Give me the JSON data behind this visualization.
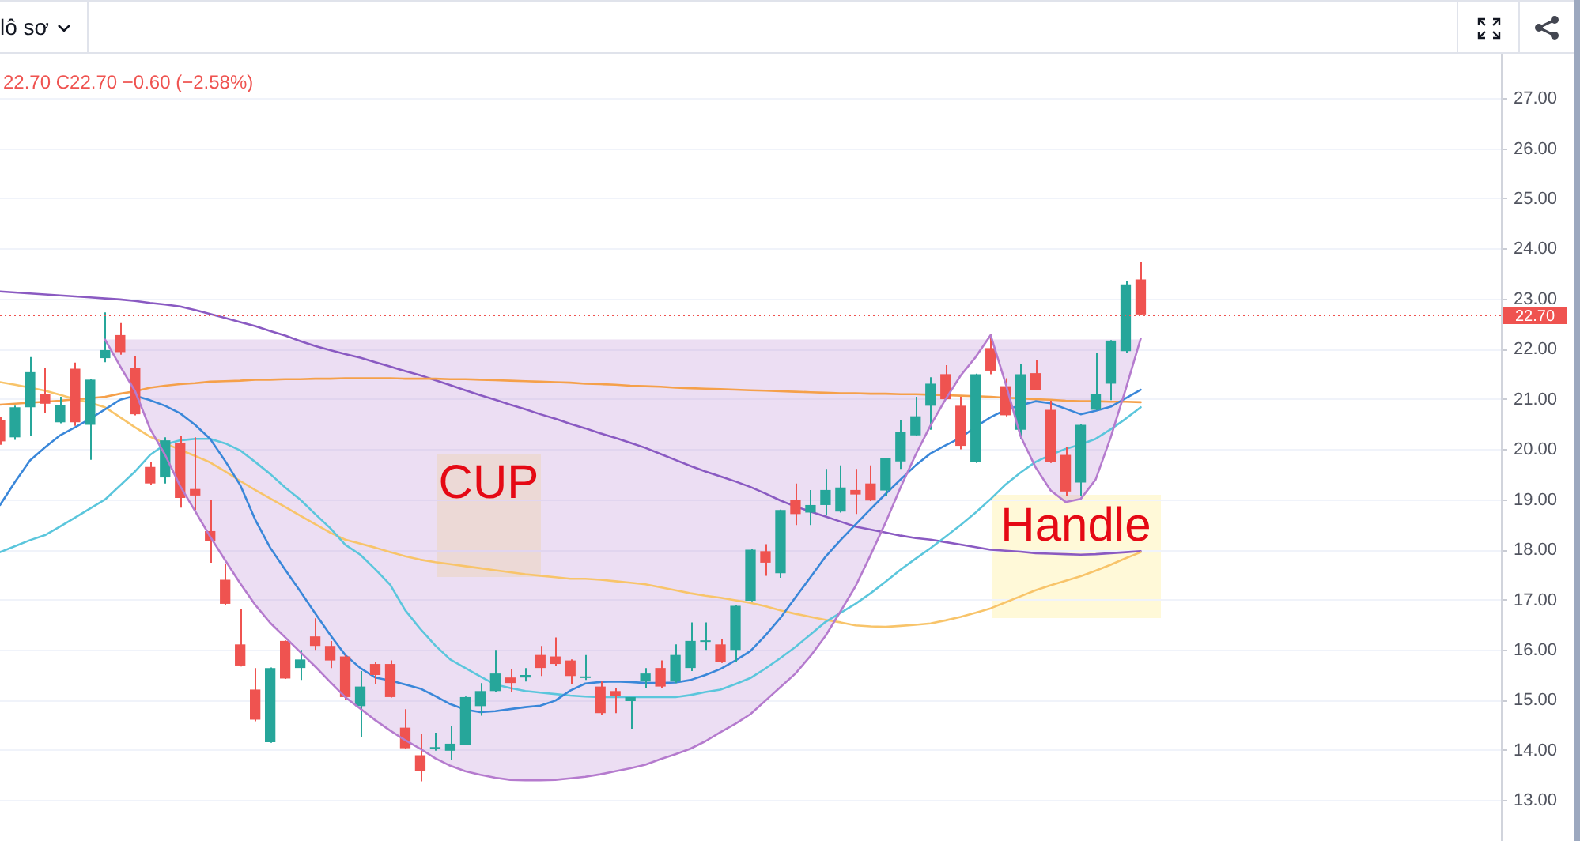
{
  "chart_data": {
    "type": "candlestick",
    "categories": [
      null,
      null,
      null,
      null,
      null,
      null,
      null,
      null,
      null,
      null,
      null,
      null,
      null,
      null,
      null,
      null,
      null,
      null,
      null,
      null,
      null,
      null,
      null,
      null,
      null,
      null,
      null,
      null,
      null,
      null,
      null,
      null,
      null,
      null,
      null,
      null,
      null,
      null,
      null,
      null,
      null,
      null,
      null,
      null,
      null,
      null,
      null,
      null,
      null,
      null,
      null,
      null,
      null,
      null,
      null,
      null,
      null,
      null,
      null,
      null,
      null,
      null,
      null,
      null,
      null,
      null,
      null,
      null,
      null,
      null,
      null,
      null,
      null,
      null,
      null,
      null,
      null,
      null,
      null,
      null,
      null,
      null,
      null,
      null,
      null,
      null,
      null,
      null,
      null,
      null,
      null,
      null,
      null,
      null,
      null,
      null,
      null,
      null,
      null,
      null,
      null
    ],
    "ohlc": [
      [
        20.59,
        20.65,
        20.1,
        20.17
      ],
      [
        20.25,
        20.88,
        20.2,
        20.85
      ],
      [
        20.85,
        21.85,
        20.27,
        21.55
      ],
      [
        21.11,
        21.64,
        20.74,
        20.92
      ],
      [
        20.55,
        21.06,
        20.53,
        20.9
      ],
      [
        21.62,
        21.74,
        20.48,
        20.55
      ],
      [
        20.5,
        21.42,
        19.8,
        21.4
      ],
      [
        21.83,
        22.74,
        21.75,
        21.99
      ],
      [
        22.29,
        22.53,
        21.9,
        21.95
      ],
      [
        21.64,
        21.87,
        20.69,
        20.71
      ],
      [
        19.66,
        19.75,
        19.3,
        19.33
      ],
      [
        19.45,
        20.25,
        19.33,
        20.19
      ],
      [
        20.14,
        20.27,
        18.85,
        19.04
      ],
      [
        19.22,
        20.25,
        18.8,
        19.09
      ],
      [
        18.38,
        19.01,
        17.75,
        18.19
      ],
      [
        17.41,
        17.73,
        16.91,
        16.93
      ],
      [
        16.12,
        16.82,
        15.68,
        15.7
      ],
      [
        15.22,
        15.65,
        14.59,
        14.62
      ],
      [
        14.17,
        15.66,
        14.16,
        15.65
      ],
      [
        16.19,
        16.2,
        15.43,
        15.44
      ],
      [
        15.65,
        16.01,
        15.41,
        15.82
      ],
      [
        16.28,
        16.64,
        16.01,
        16.09
      ],
      [
        16.09,
        16.19,
        15.65,
        15.8
      ],
      [
        15.88,
        15.91,
        15.01,
        15.07
      ],
      [
        14.89,
        15.59,
        14.28,
        15.28
      ],
      [
        15.73,
        15.77,
        15.33,
        15.51
      ],
      [
        15.73,
        15.8,
        15.06,
        15.07
      ],
      [
        14.46,
        14.83,
        14.04,
        14.05
      ],
      [
        13.91,
        14.33,
        13.39,
        13.6
      ],
      [
        14.04,
        14.36,
        14.0,
        14.07
      ],
      [
        14.0,
        14.49,
        13.81,
        14.14
      ],
      [
        14.12,
        15.08,
        14.11,
        15.07
      ],
      [
        14.89,
        15.35,
        14.7,
        15.19
      ],
      [
        15.19,
        16.01,
        15.18,
        15.54
      ],
      [
        15.46,
        15.62,
        15.17,
        15.35
      ],
      [
        15.46,
        15.65,
        15.38,
        15.51
      ],
      [
        15.91,
        16.09,
        15.49,
        15.65
      ],
      [
        15.88,
        16.26,
        15.7,
        15.73
      ],
      [
        15.8,
        15.82,
        15.33,
        15.49
      ],
      [
        15.45,
        15.91,
        15.41,
        15.47
      ],
      [
        15.28,
        15.38,
        14.72,
        14.75
      ],
      [
        15.19,
        15.25,
        14.75,
        15.09
      ],
      [
        14.99,
        15.07,
        14.44,
        15.07
      ],
      [
        15.38,
        15.65,
        15.25,
        15.54
      ],
      [
        15.65,
        15.8,
        15.25,
        15.28
      ],
      [
        15.38,
        16.12,
        15.35,
        15.91
      ],
      [
        15.65,
        16.56,
        15.59,
        16.19
      ],
      [
        16.17,
        16.56,
        16.01,
        16.19
      ],
      [
        16.12,
        16.22,
        15.75,
        15.77
      ],
      [
        16.01,
        16.9,
        15.77,
        16.89
      ],
      [
        16.99,
        18.02,
        16.98,
        18.01
      ],
      [
        17.98,
        18.12,
        17.49,
        17.75
      ],
      [
        17.54,
        18.81,
        17.45,
        18.8
      ],
      [
        19.01,
        19.33,
        18.5,
        18.72
      ],
      [
        18.75,
        19.2,
        18.5,
        18.9
      ],
      [
        18.9,
        19.62,
        18.69,
        19.2
      ],
      [
        18.77,
        19.69,
        18.75,
        19.25
      ],
      [
        19.2,
        19.62,
        18.72,
        19.11
      ],
      [
        19.33,
        19.69,
        18.98,
        18.99
      ],
      [
        19.19,
        19.84,
        19.09,
        19.83
      ],
      [
        19.77,
        20.59,
        19.62,
        20.36
      ],
      [
        20.29,
        21.06,
        20.27,
        20.67
      ],
      [
        20.88,
        21.45,
        20.4,
        21.32
      ],
      [
        21.51,
        21.69,
        21.0,
        21.01
      ],
      [
        20.88,
        21.06,
        20.01,
        20.08
      ],
      [
        19.75,
        21.52,
        19.74,
        21.51
      ],
      [
        22.03,
        22.32,
        21.51,
        21.58
      ],
      [
        21.27,
        21.43,
        20.67,
        20.69
      ],
      [
        20.4,
        21.71,
        20.22,
        21.51
      ],
      [
        21.53,
        21.8,
        21.19,
        21.2
      ],
      [
        20.8,
        20.98,
        19.74,
        19.75
      ],
      [
        19.9,
        20.06,
        19.09,
        19.17
      ],
      [
        19.35,
        20.51,
        19.09,
        20.5
      ],
      [
        20.8,
        21.93,
        20.79,
        21.11
      ],
      [
        21.32,
        22.19,
        20.99,
        22.18
      ],
      [
        21.97,
        23.37,
        21.93,
        23.3
      ],
      [
        23.4,
        23.75,
        22.7,
        22.7
      ],
      null,
      null,
      null,
      null,
      null,
      null,
      null,
      null,
      null,
      null,
      null,
      null,
      null,
      null,
      null,
      null,
      null,
      null,
      null,
      null,
      null,
      null,
      null,
      null
    ],
    "colors": [
      "#ef5350",
      "#26a69a",
      "#26a69a",
      "#ef5350",
      "#26a69a",
      "#ef5350",
      "#26a69a",
      "#26a69a",
      "#ef5350",
      "#ef5350",
      "#ef5350",
      "#26a69a",
      "#ef5350",
      "#ef5350",
      "#ef5350",
      "#ef5350",
      "#ef5350",
      "#ef5350",
      "#26a69a",
      "#ef5350",
      "#26a69a",
      "#ef5350",
      "#ef5350",
      "#ef5350",
      "#26a69a",
      "#ef5350",
      "#ef5350",
      "#ef5350",
      "#ef5350",
      "#26a69a",
      "#26a69a",
      "#26a69a",
      "#26a69a",
      "#26a69a",
      "#ef5350",
      "#26a69a",
      "#ef5350",
      "#ef5350",
      "#ef5350",
      "#26a69a",
      "#ef5350",
      "#ef5350",
      "#26a69a",
      "#26a69a",
      "#ef5350",
      "#26a69a",
      "#26a69a",
      "#26a69a",
      "#ef5350",
      "#26a69a",
      "#26a69a",
      "#ef5350",
      "#26a69a",
      "#ef5350",
      "#26a69a",
      "#26a69a",
      "#26a69a",
      "#ef5350",
      "#ef5350",
      "#26a69a",
      "#26a69a",
      "#26a69a",
      "#26a69a",
      "#ef5350",
      "#ef5350",
      "#26a69a",
      "#ef5350",
      "#ef5350",
      "#26a69a",
      "#ef5350",
      "#ef5350",
      "#ef5350",
      "#26a69a",
      "#26a69a",
      "#26a69a",
      "#26a69a",
      "#ef5350",
      null,
      null,
      null,
      null,
      null,
      null,
      null,
      null,
      null,
      null,
      null,
      null,
      null,
      null,
      null,
      null,
      null,
      null,
      null,
      null,
      null,
      null,
      null,
      null
    ],
    "series": [
      {
        "type": "line",
        "color": "#3a87d9",
        "values": [
          18.9,
          19.36,
          19.79,
          20.05,
          20.29,
          20.45,
          20.62,
          20.81,
          21.0,
          21.08,
          20.99,
          20.88,
          20.73,
          20.5,
          20.22,
          19.78,
          19.3,
          18.61,
          18.05,
          17.61,
          17.18,
          16.74,
          16.31,
          15.91,
          15.65,
          15.46,
          15.4,
          15.32,
          15.24,
          15.09,
          14.93,
          14.82,
          14.77,
          14.79,
          14.83,
          14.87,
          14.9,
          15.0,
          15.2,
          15.34,
          15.37,
          15.38,
          15.37,
          15.35,
          15.35,
          15.36,
          15.41,
          15.51,
          15.63,
          15.8,
          15.99,
          16.3,
          16.65,
          17.06,
          17.46,
          17.87,
          18.2,
          18.51,
          18.82,
          19.12,
          19.41,
          19.69,
          19.93,
          20.09,
          20.24,
          20.46,
          20.65,
          20.8,
          20.89,
          20.97,
          20.93,
          20.82,
          20.71,
          20.78,
          20.86,
          21.03,
          21.2,
          null,
          null,
          null,
          null,
          null,
          null,
          null,
          null,
          null,
          null,
          null,
          null,
          null,
          null,
          null,
          null,
          null,
          null,
          null,
          null,
          null,
          null,
          null,
          null
        ]
      },
      {
        "type": "line",
        "color": "#5bc6dc",
        "values": [
          17.96,
          18.08,
          18.2,
          18.3,
          18.47,
          18.65,
          18.83,
          19.01,
          19.29,
          19.57,
          19.9,
          20.11,
          20.19,
          20.22,
          20.22,
          20.13,
          19.99,
          19.76,
          19.52,
          19.25,
          19.01,
          18.72,
          18.44,
          18.11,
          17.91,
          17.62,
          17.31,
          16.8,
          16.43,
          16.1,
          15.82,
          15.65,
          15.48,
          15.32,
          15.25,
          15.19,
          15.16,
          15.13,
          15.1,
          15.08,
          15.07,
          15.07,
          15.07,
          15.07,
          15.07,
          15.07,
          15.11,
          15.17,
          15.22,
          15.33,
          15.45,
          15.64,
          15.85,
          16.07,
          16.32,
          16.57,
          16.75,
          16.93,
          17.14,
          17.37,
          17.61,
          17.83,
          18.04,
          18.27,
          18.5,
          18.75,
          19.02,
          19.31,
          19.55,
          19.76,
          19.9,
          20.02,
          20.11,
          20.22,
          20.41,
          20.62,
          20.85,
          null,
          null,
          null,
          null,
          null,
          null,
          null,
          null,
          null,
          null,
          null,
          null,
          null,
          null,
          null,
          null,
          null,
          null,
          null,
          null,
          null,
          null,
          null,
          null
        ]
      },
      {
        "type": "line",
        "color": "#f8c46a",
        "values": [
          21.35,
          21.3,
          21.24,
          21.18,
          21.1,
          21.01,
          20.94,
          20.85,
          20.65,
          20.45,
          20.26,
          20.13,
          20.0,
          19.88,
          19.75,
          19.57,
          19.38,
          19.2,
          19.03,
          18.86,
          18.69,
          18.52,
          18.35,
          18.21,
          18.13,
          18.05,
          17.96,
          17.88,
          17.81,
          17.76,
          17.72,
          17.68,
          17.64,
          17.6,
          17.56,
          17.52,
          17.49,
          17.46,
          17.43,
          17.43,
          17.41,
          17.38,
          17.35,
          17.32,
          17.26,
          17.2,
          17.14,
          17.09,
          17.05,
          17.0,
          16.95,
          16.88,
          16.8,
          16.73,
          16.67,
          16.61,
          16.56,
          16.5,
          16.48,
          16.47,
          16.49,
          16.51,
          16.54,
          16.6,
          16.67,
          16.75,
          16.84,
          16.96,
          17.08,
          17.2,
          17.3,
          17.39,
          17.48,
          17.59,
          17.71,
          17.84,
          17.96,
          null,
          null,
          null,
          null,
          null,
          null,
          null,
          null,
          null,
          null,
          null,
          null,
          null,
          null,
          null,
          null,
          null,
          null,
          null,
          null,
          null,
          null,
          null,
          null
        ]
      },
      {
        "type": "line",
        "color": "#f5a04a",
        "values": [
          20.9,
          20.92,
          20.94,
          20.96,
          20.98,
          21.01,
          21.03,
          21.06,
          21.12,
          21.17,
          21.24,
          21.28,
          21.31,
          21.33,
          21.36,
          21.37,
          21.38,
          21.4,
          21.4,
          21.41,
          21.41,
          21.42,
          21.42,
          21.43,
          21.43,
          21.43,
          21.43,
          21.42,
          21.42,
          21.42,
          21.41,
          21.41,
          21.4,
          21.39,
          21.38,
          21.37,
          21.36,
          21.35,
          21.34,
          21.32,
          21.31,
          21.3,
          21.28,
          21.27,
          21.26,
          21.24,
          21.23,
          21.22,
          21.21,
          21.2,
          21.19,
          21.18,
          21.17,
          21.16,
          21.15,
          21.14,
          21.13,
          21.13,
          21.12,
          21.12,
          21.11,
          21.11,
          21.1,
          21.09,
          21.08,
          21.07,
          21.06,
          21.04,
          21.03,
          21.01,
          21.0,
          20.98,
          20.97,
          20.97,
          20.96,
          20.96,
          20.95,
          null,
          null,
          null,
          null,
          null,
          null,
          null,
          null,
          null,
          null,
          null,
          null,
          null,
          null,
          null,
          null,
          null,
          null,
          null,
          null,
          null,
          null,
          null,
          null
        ]
      },
      {
        "type": "line",
        "color": "#8a5ac2",
        "values": [
          23.16,
          23.14,
          23.12,
          23.1,
          23.08,
          23.06,
          23.04,
          23.02,
          23.0,
          22.97,
          22.93,
          22.9,
          22.86,
          22.79,
          22.71,
          22.63,
          22.55,
          22.47,
          22.37,
          22.28,
          22.17,
          22.07,
          21.99,
          21.91,
          21.84,
          21.75,
          21.66,
          21.57,
          21.49,
          21.39,
          21.29,
          21.19,
          21.09,
          21.0,
          20.9,
          20.81,
          20.71,
          20.62,
          20.52,
          20.43,
          20.33,
          20.24,
          20.14,
          20.04,
          19.92,
          19.8,
          19.68,
          19.57,
          19.47,
          19.37,
          19.26,
          19.13,
          18.99,
          18.87,
          18.77,
          18.67,
          18.57,
          18.47,
          18.41,
          18.35,
          18.29,
          18.24,
          18.21,
          18.16,
          18.11,
          18.06,
          18.01,
          17.99,
          17.97,
          17.94,
          17.93,
          17.92,
          17.91,
          17.92,
          17.94,
          17.96,
          17.98,
          null,
          null,
          null,
          null,
          null,
          null,
          null,
          null,
          null,
          null,
          null,
          null,
          null,
          null,
          null,
          null,
          null,
          null,
          null,
          null,
          null,
          null,
          null,
          null
        ]
      },
      {
        "type": "line",
        "color": "#b57bce",
        "values": [
          null,
          null,
          null,
          null,
          null,
          null,
          null,
          22.2,
          21.67,
          21.17,
          20.42,
          19.9,
          19.28,
          18.78,
          18.27,
          17.8,
          17.34,
          16.91,
          16.55,
          16.26,
          15.97,
          15.68,
          15.37,
          15.07,
          14.84,
          14.61,
          14.4,
          14.21,
          14.04,
          13.85,
          13.7,
          13.59,
          13.52,
          13.46,
          13.42,
          13.41,
          13.41,
          13.42,
          13.45,
          13.48,
          13.53,
          13.59,
          13.65,
          13.72,
          13.83,
          13.93,
          14.04,
          14.19,
          14.37,
          14.54,
          14.73,
          15.0,
          15.27,
          15.54,
          15.89,
          16.29,
          16.78,
          17.28,
          17.9,
          18.55,
          19.25,
          19.9,
          20.49,
          21.01,
          21.48,
          21.85,
          22.29,
          21.32,
          20.27,
          19.65,
          19.19,
          18.96,
          19.02,
          19.41,
          20.25,
          21.21,
          22.22,
          null,
          null,
          null,
          null,
          null,
          null,
          null,
          null,
          null,
          null,
          null,
          null,
          null,
          null,
          null,
          null,
          null,
          null,
          null,
          null,
          null,
          null,
          null,
          null
        ],
        "lower": [
          null,
          null,
          null,
          null,
          null,
          null,
          null,
          22.2,
          21.67,
          21.17,
          20.42,
          19.9,
          19.28,
          18.78,
          18.27,
          17.8,
          17.34,
          16.91,
          16.55,
          16.26,
          15.97,
          15.68,
          15.37,
          15.07,
          14.84,
          14.61,
          14.4,
          14.21,
          14.04,
          13.85,
          13.7,
          13.59,
          13.52,
          13.46,
          13.42,
          13.41,
          13.41,
          13.42,
          13.45,
          13.48,
          13.53,
          13.59,
          13.65,
          13.72,
          13.83,
          13.93,
          14.04,
          14.19,
          14.37,
          14.54,
          14.73,
          15.0,
          15.27,
          15.54,
          15.89,
          16.29,
          16.78,
          17.28,
          17.9,
          18.55,
          19.25,
          19.9,
          20.49,
          21.01,
          21.48,
          21.85,
          22.29,
          21.32,
          20.27,
          19.65,
          19.19,
          18.96,
          19.02,
          19.41,
          20.25,
          21.21,
          22.22,
          null,
          null,
          null,
          null,
          null,
          null,
          null,
          null,
          null,
          null,
          null,
          null,
          null,
          null,
          null,
          null,
          null,
          null,
          null,
          null,
          null,
          null,
          null,
          null
        ],
        "upper": [
          null,
          null,
          null,
          null,
          null,
          null,
          null,
          22.2,
          22.2,
          22.2,
          22.2,
          22.2,
          22.2,
          22.2,
          22.2,
          22.2,
          22.2,
          22.2,
          22.2,
          22.2,
          22.2,
          22.2,
          22.2,
          22.2,
          22.2,
          22.2,
          22.2,
          22.2,
          22.2,
          22.2,
          22.2,
          22.2,
          22.2,
          22.2,
          22.2,
          22.2,
          22.2,
          22.2,
          22.2,
          22.2,
          22.2,
          22.2,
          22.2,
          22.2,
          22.2,
          22.2,
          22.2,
          22.2,
          22.2,
          22.2,
          22.2,
          22.2,
          22.2,
          22.2,
          22.2,
          22.2,
          22.2,
          22.2,
          22.2,
          22.2,
          22.2,
          22.2,
          22.2,
          22.2,
          22.2,
          22.2,
          22.2,
          22.2,
          22.2,
          22.2,
          22.2,
          22.2,
          22.2,
          22.2,
          22.2,
          22.2,
          22.2,
          null,
          null,
          null,
          null,
          null,
          null,
          null,
          null,
          null,
          null,
          null,
          null,
          null,
          null,
          null,
          null,
          null,
          null,
          null,
          null,
          null,
          null,
          null,
          null
        ]
      }
    ],
    "ylim": [
      12.2,
      27.9
    ],
    "yticks": [
      {
        "value": 13,
        "label": "13.00"
      },
      {
        "value": 14,
        "label": "14.00"
      },
      {
        "value": 15,
        "label": "15.00"
      },
      {
        "value": 16,
        "label": "16.00"
      },
      {
        "value": 17,
        "label": "17.00"
      },
      {
        "value": 18,
        "label": "18.00"
      },
      {
        "value": 19,
        "label": "19.00"
      },
      {
        "value": 20,
        "label": "20.00"
      },
      {
        "value": 21,
        "label": "21.00"
      },
      {
        "value": 22,
        "label": "22.00"
      },
      {
        "value": 23,
        "label": "23.00"
      },
      {
        "value": 24,
        "label": "24.00"
      },
      {
        "value": 25,
        "label": "25.00"
      },
      {
        "value": 26,
        "label": "26.00"
      },
      {
        "value": 27,
        "label": "27.00"
      }
    ],
    "grid": "y",
    "tick_labels": "y",
    "ref_lines": [
      {
        "axis": "y",
        "value": 22.7,
        "label": "22.70",
        "color": "#ef5350",
        "line_style": "dotted"
      }
    ],
    "annotations": [
      "lô sơ",
      "22.70 C22.70 −0.60 (−2.58%)",
      "CUP",
      "Handle"
    ]
  }
}
